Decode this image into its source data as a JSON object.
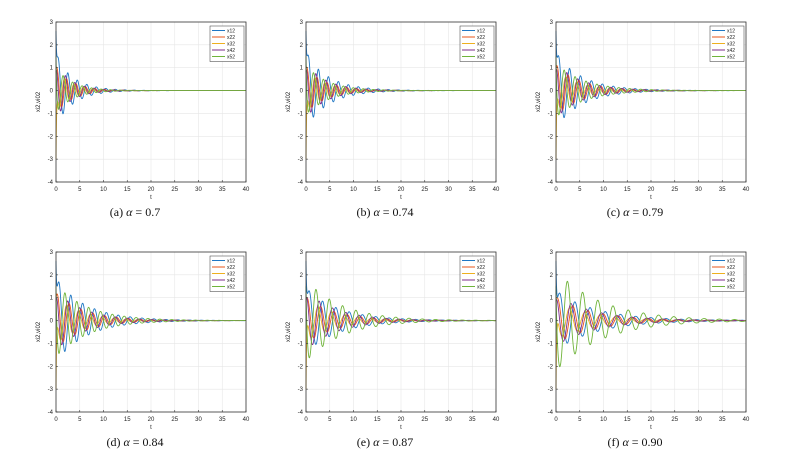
{
  "figure": {
    "colors": {
      "x12": "#1f77c4",
      "x22": "#e8541a",
      "x32": "#eeb11f",
      "x42": "#7d2e8e",
      "x52": "#6fb43a"
    },
    "legend_entries": [
      "x12",
      "x22",
      "x32",
      "x42",
      "x52"
    ]
  },
  "chart_data": [
    {
      "type": "line",
      "id": "a",
      "caption": {
        "letter": "(a)",
        "symbol": "α",
        "rest": " = 0.7"
      },
      "xlabel": "t",
      "ylabel": "xi2,vi02",
      "xlim": [
        0,
        40
      ],
      "ylim": [
        -4,
        3
      ],
      "xticks": [
        0,
        5,
        10,
        15,
        20,
        25,
        30,
        35,
        40
      ],
      "yticks": [
        -4,
        -3,
        -2,
        -1,
        0,
        1,
        2,
        3
      ],
      "grid": true,
      "legend_position": "top-right",
      "series": [
        {
          "name": "x12",
          "color": "#1f77c4",
          "initial": 2.6,
          "amplitude": 1.5,
          "period": 2.0,
          "settle": 14,
          "phase": 0.0
        },
        {
          "name": "x22",
          "color": "#e8541a",
          "initial": 1.0,
          "amplitude": 1.0,
          "period": 2.0,
          "settle": 13,
          "phase": 0.9
        },
        {
          "name": "x32",
          "color": "#eeb11f",
          "initial": -3.0,
          "amplitude": 0.9,
          "period": 2.0,
          "settle": 12,
          "phase": 2.2
        },
        {
          "name": "x42",
          "color": "#7d2e8e",
          "initial": 0.8,
          "amplitude": 1.2,
          "period": 2.0,
          "settle": 12,
          "phase": 1.6
        },
        {
          "name": "x52",
          "color": "#6fb43a",
          "initial": 1.5,
          "amplitude": 1.0,
          "period": 2.0,
          "settle": 13,
          "phase": 3.1
        }
      ]
    },
    {
      "type": "line",
      "id": "b",
      "caption": {
        "letter": "(b)",
        "symbol": "α",
        "rest": " = 0.74"
      },
      "xlabel": "t",
      "ylabel": "xi2,vi02",
      "xlim": [
        0,
        40
      ],
      "ylim": [
        -4,
        3
      ],
      "xticks": [
        0,
        5,
        10,
        15,
        20,
        25,
        30,
        35,
        40
      ],
      "yticks": [
        -4,
        -3,
        -2,
        -1,
        0,
        1,
        2,
        3
      ],
      "grid": true,
      "legend_position": "top-right",
      "series": [
        {
          "name": "x12",
          "color": "#1f77c4",
          "initial": 2.6,
          "amplitude": 1.6,
          "period": 2.1,
          "settle": 18,
          "phase": 0.0
        },
        {
          "name": "x22",
          "color": "#e8541a",
          "initial": 1.0,
          "amplitude": 1.0,
          "period": 2.1,
          "settle": 16,
          "phase": 0.9
        },
        {
          "name": "x32",
          "color": "#eeb11f",
          "initial": -3.0,
          "amplitude": 0.9,
          "period": 2.1,
          "settle": 15,
          "phase": 2.2
        },
        {
          "name": "x42",
          "color": "#7d2e8e",
          "initial": 0.8,
          "amplitude": 1.2,
          "period": 2.1,
          "settle": 16,
          "phase": 1.6
        },
        {
          "name": "x52",
          "color": "#6fb43a",
          "initial": 1.5,
          "amplitude": 1.1,
          "period": 2.1,
          "settle": 17,
          "phase": 3.1
        }
      ]
    },
    {
      "type": "line",
      "id": "c",
      "caption": {
        "letter": "(c)",
        "symbol": "α",
        "rest": " = 0.79"
      },
      "xlabel": "t",
      "ylabel": "xi2,vi02",
      "xlim": [
        0,
        40
      ],
      "ylim": [
        -4,
        3
      ],
      "xticks": [
        0,
        5,
        10,
        15,
        20,
        25,
        30,
        35,
        40
      ],
      "yticks": [
        -4,
        -3,
        -2,
        -1,
        0,
        1,
        2,
        3
      ],
      "grid": true,
      "legend_position": "top-right",
      "series": [
        {
          "name": "x12",
          "color": "#1f77c4",
          "initial": 2.6,
          "amplitude": 1.6,
          "period": 2.3,
          "settle": 21,
          "phase": 0.0
        },
        {
          "name": "x22",
          "color": "#e8541a",
          "initial": 1.0,
          "amplitude": 1.1,
          "period": 2.3,
          "settle": 20,
          "phase": 0.9
        },
        {
          "name": "x32",
          "color": "#eeb11f",
          "initial": -3.0,
          "amplitude": 0.9,
          "period": 2.3,
          "settle": 18,
          "phase": 2.2
        },
        {
          "name": "x42",
          "color": "#7d2e8e",
          "initial": 0.8,
          "amplitude": 1.2,
          "period": 2.3,
          "settle": 20,
          "phase": 1.6
        },
        {
          "name": "x52",
          "color": "#6fb43a",
          "initial": 1.5,
          "amplitude": 1.2,
          "period": 2.3,
          "settle": 22,
          "phase": 3.1
        }
      ]
    },
    {
      "type": "line",
      "id": "d",
      "caption": {
        "letter": "(d)",
        "symbol": "α",
        "rest": " = 0.84"
      },
      "xlabel": "t",
      "ylabel": "xi2,vi02",
      "xlim": [
        0,
        40
      ],
      "ylim": [
        -4,
        3
      ],
      "xticks": [
        0,
        5,
        10,
        15,
        20,
        25,
        30,
        35,
        40
      ],
      "yticks": [
        -4,
        -3,
        -2,
        -1,
        0,
        1,
        2,
        3
      ],
      "grid": true,
      "legend_position": "top-right",
      "series": [
        {
          "name": "x12",
          "color": "#1f77c4",
          "initial": 2.6,
          "amplitude": 1.8,
          "period": 2.5,
          "settle": 24,
          "phase": 0.0
        },
        {
          "name": "x22",
          "color": "#e8541a",
          "initial": 1.0,
          "amplitude": 1.2,
          "period": 2.5,
          "settle": 22,
          "phase": 0.9
        },
        {
          "name": "x32",
          "color": "#eeb11f",
          "initial": -3.0,
          "amplitude": 1.0,
          "period": 2.5,
          "settle": 20,
          "phase": 2.2
        },
        {
          "name": "x42",
          "color": "#7d2e8e",
          "initial": 0.8,
          "amplitude": 1.3,
          "period": 2.5,
          "settle": 22,
          "phase": 1.6
        },
        {
          "name": "x52",
          "color": "#6fb43a",
          "initial": 1.5,
          "amplitude": 1.6,
          "period": 2.5,
          "settle": 25,
          "phase": 3.1
        }
      ]
    },
    {
      "type": "line",
      "id": "e",
      "caption": {
        "letter": "(e)",
        "symbol": "α",
        "rest": " = 0.87"
      },
      "xlabel": "t",
      "ylabel": "xi2,vi02",
      "xlim": [
        0,
        40
      ],
      "ylim": [
        -4,
        3
      ],
      "xticks": [
        0,
        5,
        10,
        15,
        20,
        25,
        30,
        35,
        40
      ],
      "yticks": [
        -4,
        -3,
        -2,
        -1,
        0,
        1,
        2,
        3
      ],
      "grid": true,
      "legend_position": "top-right",
      "series": [
        {
          "name": "x12",
          "color": "#1f77c4",
          "initial": 2.6,
          "amplitude": 1.4,
          "period": 2.8,
          "settle": 26,
          "phase": 0.0
        },
        {
          "name": "x22",
          "color": "#e8541a",
          "initial": 1.0,
          "amplitude": 1.0,
          "period": 2.8,
          "settle": 24,
          "phase": 0.9
        },
        {
          "name": "x32",
          "color": "#eeb11f",
          "initial": -3.0,
          "amplitude": 0.9,
          "period": 2.8,
          "settle": 22,
          "phase": 2.2
        },
        {
          "name": "x42",
          "color": "#7d2e8e",
          "initial": 0.8,
          "amplitude": 1.3,
          "period": 2.8,
          "settle": 24,
          "phase": 1.6
        },
        {
          "name": "x52",
          "color": "#6fb43a",
          "initial": 1.5,
          "amplitude": 1.8,
          "period": 2.8,
          "settle": 28,
          "phase": 3.1
        }
      ]
    },
    {
      "type": "line",
      "id": "f",
      "caption": {
        "letter": "(f)",
        "symbol": "α",
        "rest": " = 0.90"
      },
      "xlabel": "t",
      "ylabel": "xi2,vi02",
      "xlim": [
        0,
        40
      ],
      "ylim": [
        -4,
        3
      ],
      "xticks": [
        0,
        5,
        10,
        15,
        20,
        25,
        30,
        35,
        40
      ],
      "yticks": [
        -4,
        -3,
        -2,
        -1,
        0,
        1,
        2,
        3
      ],
      "grid": true,
      "legend_position": "top-right",
      "series": [
        {
          "name": "x12",
          "color": "#1f77c4",
          "initial": 2.6,
          "amplitude": 1.3,
          "period": 3.2,
          "settle": 32,
          "phase": 0.0
        },
        {
          "name": "x22",
          "color": "#e8541a",
          "initial": 1.0,
          "amplitude": 1.0,
          "period": 3.2,
          "settle": 30,
          "phase": 0.9
        },
        {
          "name": "x32",
          "color": "#eeb11f",
          "initial": -3.0,
          "amplitude": 0.8,
          "period": 3.2,
          "settle": 28,
          "phase": 2.2
        },
        {
          "name": "x42",
          "color": "#7d2e8e",
          "initial": 0.8,
          "amplitude": 1.1,
          "period": 3.2,
          "settle": 30,
          "phase": 1.6
        },
        {
          "name": "x52",
          "color": "#6fb43a",
          "initial": 1.5,
          "amplitude": 2.2,
          "period": 3.2,
          "settle": 36,
          "phase": 3.1
        }
      ]
    }
  ]
}
